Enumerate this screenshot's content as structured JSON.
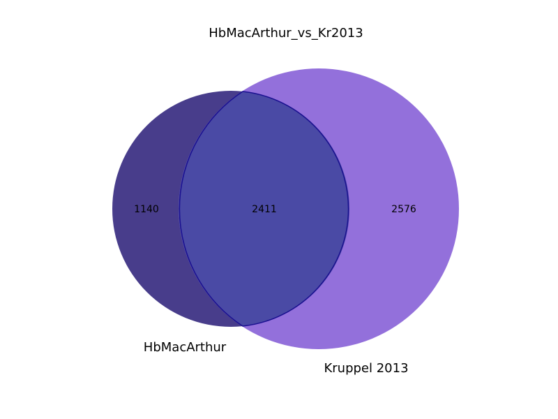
{
  "title": "HbMacArthur_vs_Kr2013",
  "sets": [
    {
      "label": "HbMacArthur",
      "color": "#483d8b"
    },
    {
      "label": "Kruppel 2013",
      "color": "#9370db"
    }
  ],
  "regions": {
    "only_a": "1140",
    "both": "2411",
    "only_b": "2576"
  },
  "colors": {
    "overlap": "#4a4aa5",
    "overlap_edge": "#1a1090"
  }
}
